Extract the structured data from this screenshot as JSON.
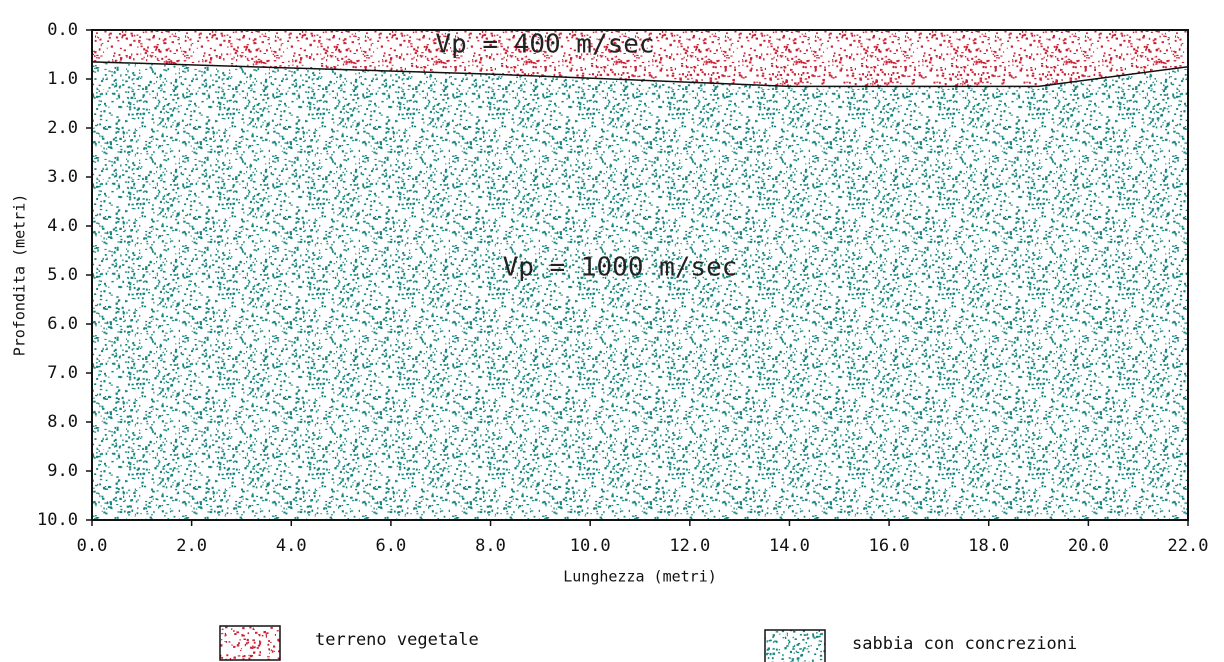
{
  "chart_data": {
    "type": "section",
    "xlabel": "Lunghezza (metri)",
    "ylabel": "Profondita (metri)",
    "xlim": [
      0,
      22
    ],
    "ylim": [
      0,
      10
    ],
    "y_inverted": true,
    "xticks": [
      {
        "value": 0,
        "label": "0.0"
      },
      {
        "value": 2,
        "label": "2.0"
      },
      {
        "value": 4,
        "label": "4.0"
      },
      {
        "value": 6,
        "label": "6.0"
      },
      {
        "value": 8,
        "label": "8.0"
      },
      {
        "value": 10,
        "label": "10.0"
      },
      {
        "value": 12,
        "label": "12.0"
      },
      {
        "value": 14,
        "label": "14.0"
      },
      {
        "value": 16,
        "label": "16.0"
      },
      {
        "value": 18,
        "label": "18.0"
      },
      {
        "value": 20,
        "label": "20.0"
      },
      {
        "value": 22,
        "label": "22.0"
      }
    ],
    "yticks": [
      {
        "value": 0,
        "label": "0.0"
      },
      {
        "value": 1,
        "label": "1.0"
      },
      {
        "value": 2,
        "label": "2.0"
      },
      {
        "value": 3,
        "label": "3.0"
      },
      {
        "value": 4,
        "label": "4.0"
      },
      {
        "value": 5,
        "label": "5.0"
      },
      {
        "value": 6,
        "label": "6.0"
      },
      {
        "value": 7,
        "label": "7.0"
      },
      {
        "value": 8,
        "label": "8.0"
      },
      {
        "value": 9,
        "label": "9.0"
      },
      {
        "value": 10,
        "label": "10.0"
      }
    ],
    "x": [
      0,
      8,
      14,
      19,
      22
    ],
    "boundary": [
      0.65,
      0.9,
      1.15,
      1.15,
      0.75
    ],
    "series": [
      {
        "name": "terreno vegetale",
        "color": "#cc2236",
        "label": "Vp = 400 m/sec"
      },
      {
        "name": "sabbia con concrezioni",
        "color": "#16857f",
        "label": "Vp = 1000 m/sec"
      }
    ]
  }
}
